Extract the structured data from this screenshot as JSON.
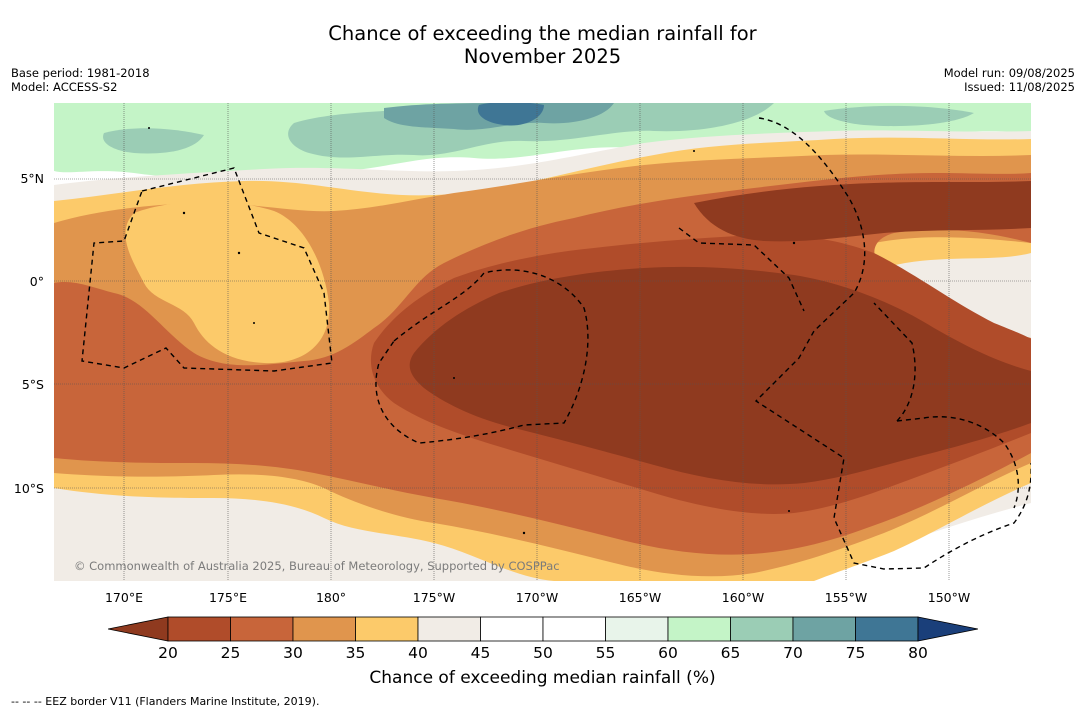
{
  "title": {
    "line1": "Chance of exceeding the median rainfall for",
    "line2": "November 2025"
  },
  "meta": {
    "base_period": "Base period: 1981-2018",
    "model": "Model: ACCESS-S2",
    "model_run": "Model run: 09/08/2025",
    "issued": "Issued: 11/08/2025"
  },
  "axes": {
    "lat_labels": [
      "5°N",
      "0°",
      "5°S",
      "10°S"
    ],
    "lon_labels": [
      "170°E",
      "175°E",
      "180°",
      "175°W",
      "170°W",
      "165°W",
      "160°W",
      "155°W",
      "150°W"
    ]
  },
  "copyright": "© Commonwealth of Australia 2025, Bureau of Meteorology, Supported by COSPPac",
  "colorbar": {
    "ticks": [
      "20",
      "25",
      "30",
      "35",
      "40",
      "45",
      "50",
      "55",
      "60",
      "65",
      "70",
      "75",
      "80"
    ],
    "colors": [
      "#8f3a1f",
      "#b04c2a",
      "#c8653a",
      "#e0954d",
      "#fcca6a",
      "#f1ece6",
      "#ffffff",
      "#ffffff",
      "#e8f4ea",
      "#c4f4c7",
      "#9bcdb5",
      "#6ea3a3",
      "#3f7695",
      "#1d4d85",
      "#1a3f7a"
    ],
    "label": "Chance of exceeding median rainfall (%)"
  },
  "footer": "--  --  -- EEZ border V11 (Flanders Marine Institute, 2019)."
}
